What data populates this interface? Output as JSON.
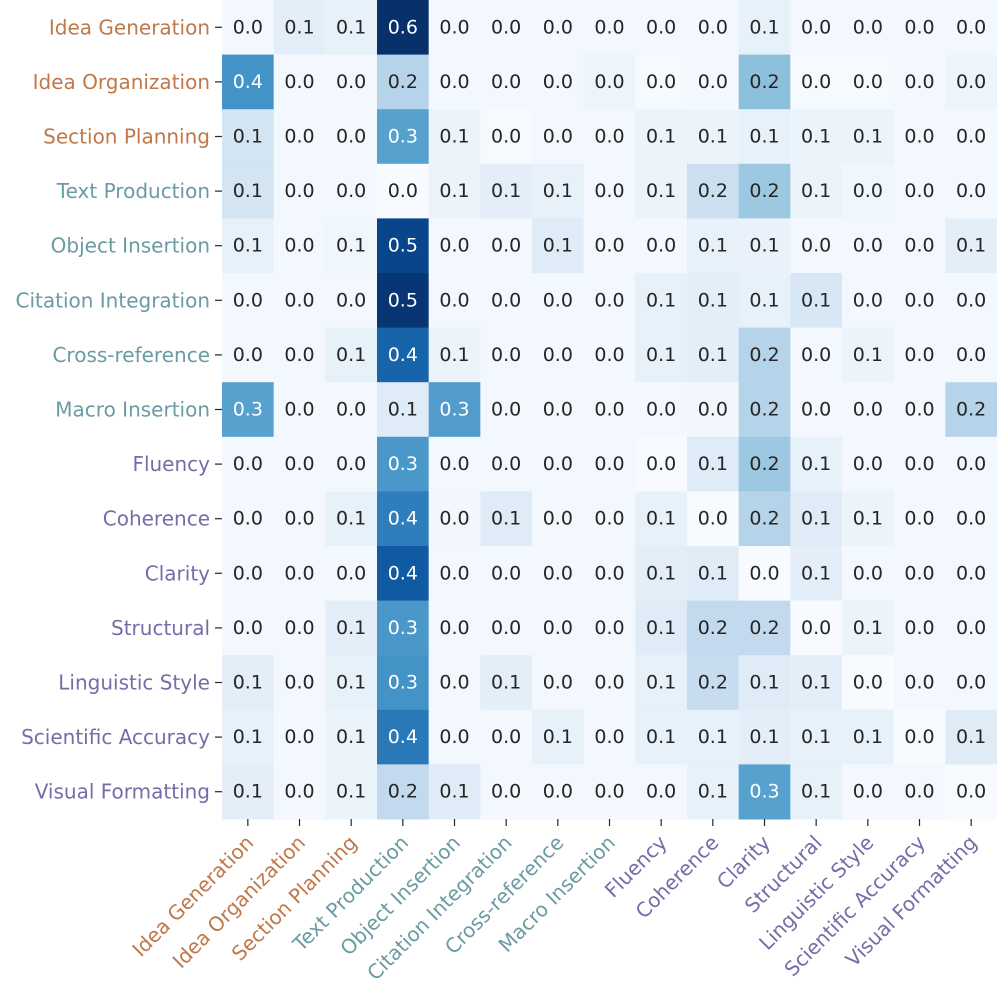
{
  "chart_data": {
    "type": "heatmap",
    "title": "",
    "xlabel": "",
    "ylabel": "",
    "colormap": "Blues",
    "value_range": [
      0,
      0.6
    ],
    "value_format": "one-decimal",
    "categories": [
      "Idea Generation",
      "Idea Organization",
      "Section Planning",
      "Text Production",
      "Object Insertion",
      "Citation Integration",
      "Cross-reference",
      "Macro Insertion",
      "Fluency",
      "Coherence",
      "Clarity",
      "Structural",
      "Linguistic Style",
      "Scientific Accuracy",
      "Visual Formatting"
    ],
    "category_groups": [
      0,
      0,
      0,
      1,
      1,
      1,
      1,
      1,
      2,
      2,
      2,
      2,
      2,
      2,
      2
    ],
    "group_colors": [
      "#c0784a",
      "#6a9ba3",
      "#7a6aa8"
    ],
    "matrix": [
      [
        0.0,
        0.1,
        0.1,
        0.6,
        0.0,
        0.0,
        0.0,
        0.0,
        0.0,
        0.0,
        0.1,
        0.0,
        0.0,
        0.0,
        0.0
      ],
      [
        0.4,
        0.0,
        0.0,
        0.2,
        0.0,
        0.0,
        0.0,
        0.0,
        0.0,
        0.0,
        0.2,
        0.0,
        0.0,
        0.0,
        0.0
      ],
      [
        0.1,
        0.0,
        0.0,
        0.3,
        0.1,
        0.0,
        0.0,
        0.0,
        0.1,
        0.1,
        0.1,
        0.1,
        0.1,
        0.0,
        0.0
      ],
      [
        0.1,
        0.0,
        0.0,
        0.0,
        0.1,
        0.1,
        0.1,
        0.0,
        0.1,
        0.2,
        0.2,
        0.1,
        0.0,
        0.0,
        0.0
      ],
      [
        0.1,
        0.0,
        0.1,
        0.5,
        0.0,
        0.0,
        0.1,
        0.0,
        0.0,
        0.1,
        0.1,
        0.0,
        0.0,
        0.0,
        0.1
      ],
      [
        0.0,
        0.0,
        0.0,
        0.5,
        0.0,
        0.0,
        0.0,
        0.0,
        0.1,
        0.1,
        0.1,
        0.1,
        0.0,
        0.0,
        0.0
      ],
      [
        0.0,
        0.0,
        0.1,
        0.4,
        0.1,
        0.0,
        0.0,
        0.0,
        0.1,
        0.1,
        0.2,
        0.0,
        0.1,
        0.0,
        0.0
      ],
      [
        0.3,
        0.0,
        0.0,
        0.1,
        0.3,
        0.0,
        0.0,
        0.0,
        0.0,
        0.0,
        0.2,
        0.0,
        0.0,
        0.0,
        0.2
      ],
      [
        0.0,
        0.0,
        0.0,
        0.3,
        0.0,
        0.0,
        0.0,
        0.0,
        0.0,
        0.1,
        0.2,
        0.1,
        0.0,
        0.0,
        0.0
      ],
      [
        0.0,
        0.0,
        0.1,
        0.4,
        0.0,
        0.1,
        0.0,
        0.0,
        0.1,
        0.0,
        0.2,
        0.1,
        0.1,
        0.0,
        0.0
      ],
      [
        0.0,
        0.0,
        0.0,
        0.4,
        0.0,
        0.0,
        0.0,
        0.0,
        0.1,
        0.1,
        0.0,
        0.1,
        0.0,
        0.0,
        0.0
      ],
      [
        0.0,
        0.0,
        0.1,
        0.3,
        0.0,
        0.0,
        0.0,
        0.0,
        0.1,
        0.2,
        0.2,
        0.0,
        0.1,
        0.0,
        0.0
      ],
      [
        0.1,
        0.0,
        0.1,
        0.3,
        0.0,
        0.1,
        0.0,
        0.0,
        0.1,
        0.2,
        0.1,
        0.1,
        0.0,
        0.0,
        0.0
      ],
      [
        0.1,
        0.0,
        0.1,
        0.4,
        0.0,
        0.0,
        0.1,
        0.0,
        0.1,
        0.1,
        0.1,
        0.1,
        0.1,
        0.0,
        0.1
      ],
      [
        0.1,
        0.0,
        0.1,
        0.2,
        0.1,
        0.0,
        0.0,
        0.0,
        0.0,
        0.1,
        0.3,
        0.1,
        0.0,
        0.0,
        0.0
      ]
    ],
    "cell_intensity": [
      [
        0.02,
        0.1,
        0.08,
        1.0,
        0.02,
        0.02,
        0.02,
        0.02,
        0.02,
        0.02,
        0.08,
        0.02,
        0.02,
        0.02,
        0.02
      ],
      [
        0.62,
        0.02,
        0.02,
        0.3,
        0.02,
        0.02,
        0.02,
        0.05,
        0.01,
        0.02,
        0.42,
        0.01,
        0.01,
        0.02,
        0.05
      ],
      [
        0.18,
        0.02,
        0.02,
        0.56,
        0.06,
        0.01,
        0.02,
        0.02,
        0.06,
        0.06,
        0.08,
        0.06,
        0.06,
        0.02,
        0.02
      ],
      [
        0.18,
        0.02,
        0.02,
        0.0,
        0.06,
        0.1,
        0.08,
        0.02,
        0.06,
        0.22,
        0.38,
        0.06,
        0.04,
        0.02,
        0.02
      ],
      [
        0.08,
        0.02,
        0.04,
        0.92,
        0.02,
        0.02,
        0.12,
        0.02,
        0.02,
        0.08,
        0.07,
        0.02,
        0.02,
        0.02,
        0.1
      ],
      [
        0.02,
        0.02,
        0.02,
        0.98,
        0.02,
        0.02,
        0.02,
        0.02,
        0.08,
        0.1,
        0.08,
        0.16,
        0.02,
        0.02,
        0.02
      ],
      [
        0.02,
        0.02,
        0.08,
        0.8,
        0.06,
        0.02,
        0.02,
        0.02,
        0.08,
        0.1,
        0.3,
        0.02,
        0.06,
        0.02,
        0.02
      ],
      [
        0.56,
        0.02,
        0.02,
        0.12,
        0.58,
        0.02,
        0.02,
        0.02,
        0.02,
        0.03,
        0.3,
        0.02,
        0.02,
        0.02,
        0.3
      ],
      [
        0.02,
        0.02,
        0.02,
        0.6,
        0.02,
        0.02,
        0.02,
        0.02,
        0.0,
        0.12,
        0.38,
        0.08,
        0.02,
        0.02,
        0.02
      ],
      [
        0.02,
        0.02,
        0.08,
        0.7,
        0.03,
        0.12,
        0.02,
        0.02,
        0.08,
        0.0,
        0.3,
        0.12,
        0.06,
        0.02,
        0.02
      ],
      [
        0.02,
        0.02,
        0.02,
        0.84,
        0.02,
        0.02,
        0.02,
        0.02,
        0.1,
        0.12,
        0.0,
        0.1,
        0.02,
        0.02,
        0.02
      ],
      [
        0.02,
        0.02,
        0.1,
        0.6,
        0.02,
        0.02,
        0.02,
        0.02,
        0.12,
        0.26,
        0.26,
        0.0,
        0.06,
        0.02,
        0.02
      ],
      [
        0.1,
        0.02,
        0.08,
        0.62,
        0.02,
        0.1,
        0.02,
        0.02,
        0.08,
        0.24,
        0.12,
        0.1,
        0.0,
        0.02,
        0.02
      ],
      [
        0.08,
        0.02,
        0.06,
        0.72,
        0.02,
        0.02,
        0.08,
        0.02,
        0.08,
        0.08,
        0.1,
        0.08,
        0.08,
        0.0,
        0.12
      ],
      [
        0.1,
        0.02,
        0.06,
        0.26,
        0.12,
        0.02,
        0.02,
        0.02,
        0.02,
        0.08,
        0.56,
        0.08,
        0.02,
        0.02,
        0.0
      ]
    ]
  }
}
